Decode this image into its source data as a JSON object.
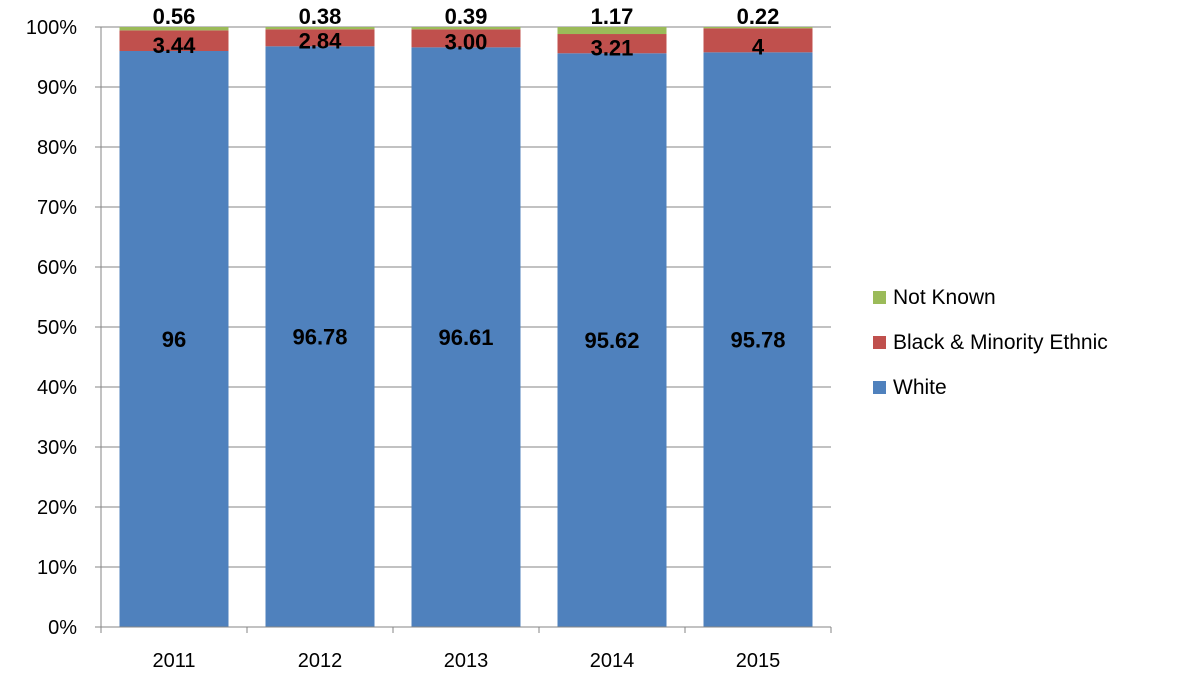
{
  "chart_data": {
    "type": "bar",
    "stacked": true,
    "percent_stacked": true,
    "categories": [
      "2011",
      "2012",
      "2013",
      "2014",
      "2015"
    ],
    "series": [
      {
        "name": "White",
        "color": "#4F81BD",
        "values": [
          96,
          96.78,
          96.61,
          95.62,
          95.78
        ],
        "labels": [
          "96",
          "96.78",
          "96.61",
          "95.62",
          "95.78"
        ]
      },
      {
        "name": "Black & Minority Ethnic",
        "color": "#C0504D",
        "values": [
          3.44,
          2.84,
          3.0,
          3.21,
          4
        ],
        "labels": [
          "3.44",
          "2.84",
          "3.00",
          "3.21",
          "4"
        ]
      },
      {
        "name": "Not Known",
        "color": "#9BBB59",
        "values": [
          0.56,
          0.38,
          0.39,
          1.17,
          0.22
        ],
        "labels": [
          "0.56",
          "0.38",
          "0.39",
          "1.17",
          "0.22"
        ]
      }
    ],
    "y_ticks": [
      "0%",
      "10%",
      "20%",
      "30%",
      "40%",
      "50%",
      "60%",
      "70%",
      "80%",
      "90%",
      "100%"
    ],
    "ylim": [
      0,
      100
    ],
    "grid": true,
    "legend_position": "right",
    "legend_order": [
      "Not Known",
      "Black & Minority Ethnic",
      "White"
    ],
    "title": "",
    "xlabel": "",
    "ylabel": ""
  }
}
